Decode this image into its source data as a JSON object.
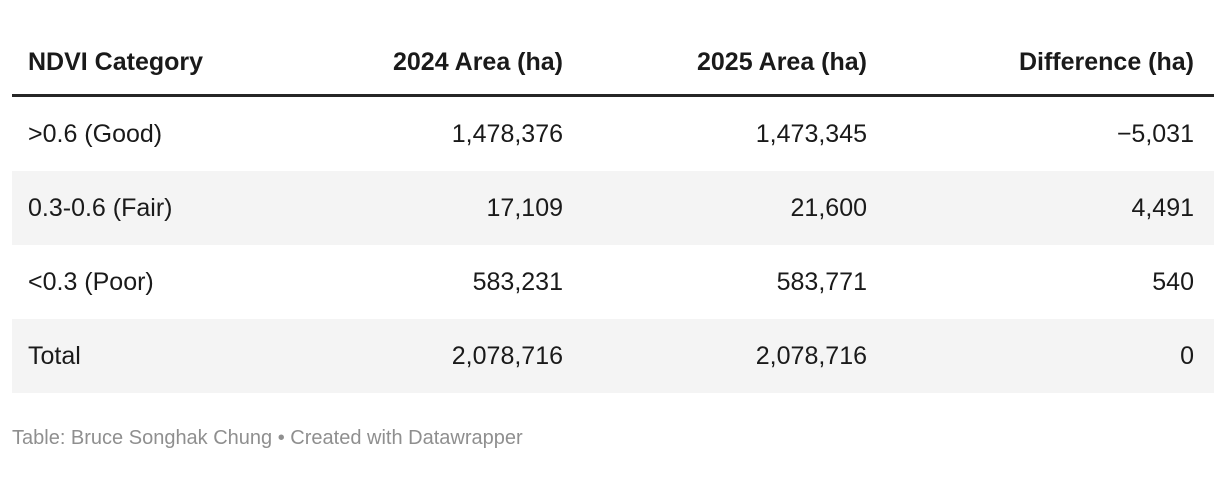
{
  "chart_data": {
    "type": "table",
    "columns": [
      "NDVI Category",
      "2024 Area (ha)",
      "2025 Area (ha)",
      "Difference (ha)"
    ],
    "rows": [
      [
        ">0.6 (Good)",
        "1,478,376",
        "1,473,345",
        "−5,031"
      ],
      [
        "0.3-0.6 (Fair)",
        "17,109",
        "21,600",
        "4,491"
      ],
      [
        "<0.3 (Poor)",
        "583,231",
        "583,771",
        "540"
      ],
      [
        "Total",
        "2,078,716",
        "2,078,716",
        "0"
      ]
    ],
    "rows_numeric": [
      {
        "category": ">0.6 (Good)",
        "area_2024": 1478376,
        "area_2025": 1473345,
        "difference": -5031
      },
      {
        "category": "0.3-0.6 (Fair)",
        "area_2024": 17109,
        "area_2025": 21600,
        "difference": 4491
      },
      {
        "category": "<0.3 (Poor)",
        "area_2024": 583231,
        "area_2025": 583771,
        "difference": 540
      },
      {
        "category": "Total",
        "area_2024": 2078716,
        "area_2025": 2078716,
        "difference": 0
      }
    ],
    "layout_hints": {
      "striped_rows": [
        2,
        4
      ],
      "numeric_columns_right_aligned": true,
      "header_rule": true
    }
  },
  "footer": {
    "credit": "Table: Bruce Songhak Chung • Created with Datawrapper"
  },
  "colors": {
    "background": "#ffffff",
    "text": "#1a1a1a",
    "header_rule": "#262626",
    "row_stripe": "#f4f4f4",
    "footer_text": "#8f8f8f"
  }
}
